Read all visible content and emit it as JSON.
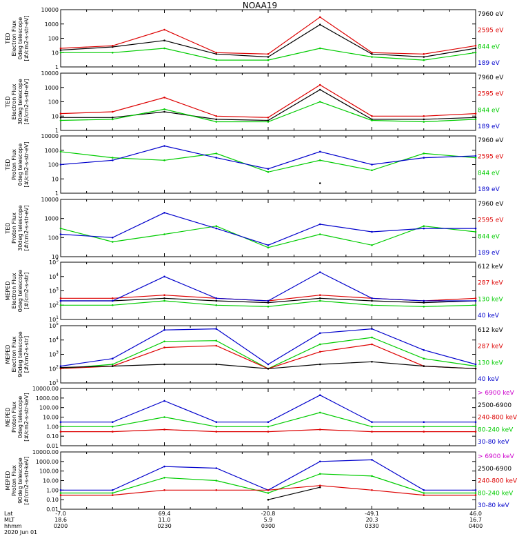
{
  "title": "NOAA19",
  "colors": {
    "black": "#000000",
    "red": "#dd0000",
    "green": "#00cc00",
    "blue": "#0000cc",
    "magenta": "#cc00cc"
  },
  "chart_data": [
    {
      "type": "line",
      "ylabel": [
        "TED",
        "Electron Flux",
        "0deg telescope",
        "[#/cm2-s-str-eV]"
      ],
      "yscale": "log",
      "ytick_labels": [
        "1",
        "10",
        "100",
        "1000",
        "10000"
      ],
      "legend": [
        {
          "label": "7960 eV",
          "color": "black"
        },
        {
          "label": "2595 eV",
          "color": "red"
        },
        {
          "label": "844 eV",
          "color": "green"
        },
        {
          "label": "189 eV",
          "color": "blue"
        }
      ],
      "x": [
        "02:00",
        "02:15",
        "02:30",
        "02:45",
        "03:00",
        "03:15",
        "03:30",
        "03:45",
        "04:00"
      ],
      "series": [
        {
          "color": "black",
          "values": [
            15,
            25,
            70,
            8,
            5,
            900,
            8,
            5,
            20
          ]
        },
        {
          "color": "red",
          "values": [
            20,
            30,
            400,
            10,
            8,
            3000,
            10,
            8,
            30
          ]
        },
        {
          "color": "green",
          "values": [
            10,
            10,
            20,
            3,
            3,
            20,
            5,
            3,
            10
          ]
        }
      ]
    },
    {
      "type": "line",
      "ylabel": [
        "TED",
        "Electron Flux",
        "30deg telescope",
        "[#/cm2-s-str-eV]"
      ],
      "yscale": "log",
      "ytick_labels": [
        "1",
        "10",
        "100",
        "1000",
        "10000"
      ],
      "legend": [
        {
          "label": "7960 eV",
          "color": "black"
        },
        {
          "label": "2595 eV",
          "color": "red"
        },
        {
          "label": "844 eV",
          "color": "green"
        },
        {
          "label": "189 eV",
          "color": "blue"
        }
      ],
      "x": [
        "02:00",
        "02:15",
        "02:30",
        "02:45",
        "03:00",
        "03:15",
        "03:30",
        "03:45",
        "04:00"
      ],
      "series": [
        {
          "color": "black",
          "values": [
            8,
            8,
            20,
            6,
            5,
            700,
            6,
            6,
            8
          ]
        },
        {
          "color": "red",
          "values": [
            15,
            20,
            200,
            10,
            8,
            1500,
            10,
            10,
            15
          ]
        },
        {
          "color": "green",
          "values": [
            5,
            6,
            30,
            4,
            4,
            100,
            5,
            4,
            6
          ]
        }
      ]
    },
    {
      "type": "line",
      "ylabel": [
        "TED",
        "Proton Flux",
        "0deg telescope",
        "[#/cm2-s-str-eV]"
      ],
      "yscale": "log",
      "ytick_labels": [
        "1",
        "10",
        "100",
        "1000",
        "10000"
      ],
      "legend": [
        {
          "label": "7960 eV",
          "color": "black"
        },
        {
          "label": "2595 eV",
          "color": "red"
        },
        {
          "label": "844 eV",
          "color": "green"
        },
        {
          "label": "189 eV",
          "color": "blue"
        }
      ],
      "x": [
        "02:00",
        "02:15",
        "02:30",
        "02:45",
        "03:00",
        "03:15",
        "03:30",
        "03:45",
        "04:00"
      ],
      "series": [
        {
          "color": "green",
          "values": [
            800,
            300,
            200,
            600,
            30,
            200,
            40,
            600,
            300
          ]
        },
        {
          "color": "blue",
          "values": [
            100,
            200,
            2000,
            300,
            50,
            800,
            100,
            300,
            400
          ]
        },
        {
          "color": "black",
          "values": [
            null,
            null,
            null,
            null,
            null,
            5,
            null,
            null,
            null
          ]
        }
      ]
    },
    {
      "type": "line",
      "ylabel": [
        "TED",
        "Proton Flux",
        "30deg telescope",
        "[#/cm2-s-str-eV]"
      ],
      "yscale": "log",
      "ytick_labels": [
        "10",
        "100",
        "1000",
        "10000"
      ],
      "legend": [
        {
          "label": "7960 eV",
          "color": "black"
        },
        {
          "label": "2595 eV",
          "color": "red"
        },
        {
          "label": "844 eV",
          "color": "green"
        },
        {
          "label": "189 eV",
          "color": "blue"
        }
      ],
      "x": [
        "02:00",
        "02:15",
        "02:30",
        "02:45",
        "03:00",
        "03:15",
        "03:30",
        "03:45",
        "04:00"
      ],
      "series": [
        {
          "color": "green",
          "values": [
            300,
            60,
            150,
            400,
            30,
            150,
            40,
            400,
            200
          ]
        },
        {
          "color": "blue",
          "values": [
            150,
            100,
            2000,
            300,
            40,
            500,
            200,
            300,
            300
          ]
        }
      ]
    },
    {
      "type": "line",
      "ylabel": [
        "MEPED",
        "Electron Flux",
        "0deg telescope",
        "[#/cm2-s-str]"
      ],
      "yscale": "log",
      "ytick_labels": [
        "10^1",
        "10^2",
        "10^3",
        "10^4",
        "10^5"
      ],
      "legend": [
        {
          "label": "612 keV",
          "color": "black"
        },
        {
          "label": "287 keV",
          "color": "red"
        },
        {
          "label": "130 keV",
          "color": "green"
        },
        {
          "label": "40 keV",
          "color": "blue"
        }
      ],
      "x": [
        "02:00",
        "02:15",
        "02:30",
        "02:45",
        "03:00",
        "03:15",
        "03:30",
        "03:45",
        "04:00"
      ],
      "series": [
        {
          "color": "black",
          "values": [
            200,
            200,
            300,
            200,
            150,
            300,
            200,
            150,
            200
          ]
        },
        {
          "color": "red",
          "values": [
            300,
            300,
            500,
            300,
            200,
            500,
            300,
            200,
            300
          ]
        },
        {
          "color": "green",
          "values": [
            100,
            100,
            200,
            100,
            80,
            200,
            100,
            80,
            100
          ]
        },
        {
          "color": "blue",
          "values": [
            200,
            200,
            10000,
            300,
            200,
            20000,
            300,
            200,
            200
          ]
        }
      ]
    },
    {
      "type": "line",
      "ylabel": [
        "MEPED",
        "Electron Flux",
        "90deg telescope",
        "[#/cm2-s-str]"
      ],
      "yscale": "log",
      "ytick_labels": [
        "10^1",
        "10^2",
        "10^3",
        "10^4",
        "10^5"
      ],
      "legend": [
        {
          "label": "612 keV",
          "color": "black"
        },
        {
          "label": "287 keV",
          "color": "red"
        },
        {
          "label": "130 keV",
          "color": "green"
        },
        {
          "label": "40 keV",
          "color": "blue"
        }
      ],
      "x": [
        "02:00",
        "02:15",
        "02:30",
        "02:45",
        "03:00",
        "03:15",
        "03:30",
        "03:45",
        "04:00"
      ],
      "series": [
        {
          "color": "blue",
          "values": [
            150,
            500,
            50000,
            60000,
            200,
            30000,
            60000,
            2000,
            200
          ]
        },
        {
          "color": "green",
          "values": [
            100,
            200,
            8000,
            9000,
            100,
            5000,
            15000,
            500,
            150
          ]
        },
        {
          "color": "red",
          "values": [
            100,
            150,
            3000,
            4000,
            100,
            1500,
            5000,
            150,
            100
          ]
        },
        {
          "color": "black",
          "values": [
            120,
            150,
            200,
            200,
            100,
            200,
            300,
            150,
            100
          ]
        }
      ]
    },
    {
      "type": "line",
      "ylabel": [
        "MEPED",
        "Proton Flux",
        "0deg telescope",
        "[#/cm2-s-str-keV]"
      ],
      "yscale": "log",
      "ytick_labels": [
        "0.01",
        "0.10",
        "1.00",
        "10.00",
        "100.00",
        "1000.00",
        "10000.00"
      ],
      "legend": [
        {
          "label": "> 6900 keV",
          "color": "magenta"
        },
        {
          "label": "2500-6900",
          "color": "black"
        },
        {
          "label": "240-800 keV",
          "color": "red"
        },
        {
          "label": "80-240 keV",
          "color": "green"
        },
        {
          "label": "30-80 keV",
          "color": "blue"
        }
      ],
      "x": [
        "02:00",
        "02:15",
        "02:30",
        "02:45",
        "03:00",
        "03:15",
        "03:30",
        "03:45",
        "04:00"
      ],
      "series": [
        {
          "color": "blue",
          "values": [
            3,
            3,
            500,
            3,
            3,
            2000,
            3,
            3,
            3
          ]
        },
        {
          "color": "green",
          "values": [
            1,
            1,
            10,
            1,
            1,
            30,
            1,
            1,
            1
          ]
        },
        {
          "color": "red",
          "values": [
            0.3,
            0.3,
            0.5,
            0.3,
            0.3,
            0.5,
            0.3,
            0.3,
            0.3
          ]
        }
      ]
    },
    {
      "type": "line",
      "ylabel": [
        "MEPED",
        "Proton Flux",
        "90deg telescope",
        "[#/cm2-s-str-keV]"
      ],
      "yscale": "log",
      "ytick_labels": [
        "0.01",
        "0.10",
        "1.00",
        "10.00",
        "100.00",
        "1000.00",
        "10000.00"
      ],
      "legend": [
        {
          "label": "> 6900 keV",
          "color": "magenta"
        },
        {
          "label": "2500-6900",
          "color": "black"
        },
        {
          "label": "240-800 keV",
          "color": "red"
        },
        {
          "label": "80-240 keV",
          "color": "green"
        },
        {
          "label": "30-80 keV",
          "color": "blue"
        }
      ],
      "x": [
        "02:00",
        "02:15",
        "02:30",
        "02:45",
        "03:00",
        "03:15",
        "03:30",
        "03:45",
        "04:00"
      ],
      "series": [
        {
          "color": "blue",
          "values": [
            1,
            1,
            300,
            200,
            1,
            1000,
            1500,
            1,
            1
          ]
        },
        {
          "color": "green",
          "values": [
            0.5,
            0.5,
            20,
            10,
            0.5,
            50,
            30,
            0.5,
            0.5
          ]
        },
        {
          "color": "red",
          "values": [
            0.3,
            0.3,
            1,
            1,
            1,
            3,
            1,
            0.3,
            0.3
          ]
        },
        {
          "color": "black",
          "values": [
            null,
            null,
            null,
            null,
            0.1,
            2,
            null,
            null,
            null
          ]
        }
      ]
    }
  ],
  "xaxis": {
    "row_labels": [
      "Lat",
      "MLT",
      "hhmm"
    ],
    "date": "2020 Jun 01",
    "ticks": [
      {
        "lat": "-7.0",
        "mlt": "18.6",
        "hhmm": "0200"
      },
      {
        "lat": "69.4",
        "mlt": "11.0",
        "hhmm": "0230"
      },
      {
        "lat": "-20.8",
        "mlt": "5.9",
        "hhmm": "0300"
      },
      {
        "lat": "-49.1",
        "mlt": "20.3",
        "hhmm": "0330"
      },
      {
        "lat": "46.0",
        "mlt": "16.7",
        "hhmm": "0400"
      }
    ]
  }
}
